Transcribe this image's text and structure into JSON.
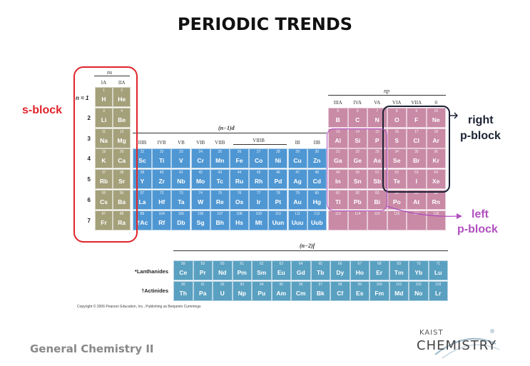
{
  "title": "PERIODIC TRENDS",
  "notes": {
    "s_block": "s-block",
    "right_p_block_1": "right",
    "right_p_block_2": "p-block",
    "left_p_block_1": "left",
    "left_p_block_2": "p-block"
  },
  "block_labels": {
    "ns": "ns",
    "np": "np",
    "nd": "(n−1)d",
    "nf": "(n−2)f",
    "n_eq": "n = 1"
  },
  "group_labels_s": [
    "IA",
    "IIA"
  ],
  "group_labels_p": [
    "IIIA",
    "IVA",
    "VA",
    "VIA",
    "VIIA",
    "0"
  ],
  "group_labels_d": [
    "IIIB",
    "IVB",
    "VB",
    "VIB",
    "VIIB",
    "VIIIB",
    "IB",
    "IIB"
  ],
  "periods": [
    "1",
    "2",
    "3",
    "4",
    "5",
    "6",
    "7"
  ],
  "row_labels": {
    "lanthanides": "*Lanthanides",
    "actinides": "†Actinides"
  },
  "elements": [
    {
      "n": "1",
      "s": "H",
      "p": 1,
      "c": 1,
      "b": "s"
    },
    {
      "n": "2",
      "s": "He",
      "p": 1,
      "c": 2,
      "b": "s"
    },
    {
      "n": "3",
      "s": "Li",
      "p": 2,
      "c": 1,
      "b": "s"
    },
    {
      "n": "4",
      "s": "Be",
      "p": 2,
      "c": 2,
      "b": "s"
    },
    {
      "n": "5",
      "s": "B",
      "p": 2,
      "c": 13,
      "b": "p"
    },
    {
      "n": "6",
      "s": "C",
      "p": 2,
      "c": 14,
      "b": "p"
    },
    {
      "n": "7",
      "s": "N",
      "p": 2,
      "c": 15,
      "b": "p"
    },
    {
      "n": "8",
      "s": "O",
      "p": 2,
      "c": 16,
      "b": "p"
    },
    {
      "n": "9",
      "s": "F",
      "p": 2,
      "c": 17,
      "b": "p"
    },
    {
      "n": "10",
      "s": "Ne",
      "p": 2,
      "c": 18,
      "b": "p"
    },
    {
      "n": "11",
      "s": "Na",
      "p": 3,
      "c": 1,
      "b": "s"
    },
    {
      "n": "12",
      "s": "Mg",
      "p": 3,
      "c": 2,
      "b": "s"
    },
    {
      "n": "13",
      "s": "Al",
      "p": 3,
      "c": 13,
      "b": "p"
    },
    {
      "n": "14",
      "s": "Si",
      "p": 3,
      "c": 14,
      "b": "p"
    },
    {
      "n": "15",
      "s": "P",
      "p": 3,
      "c": 15,
      "b": "p"
    },
    {
      "n": "16",
      "s": "S",
      "p": 3,
      "c": 16,
      "b": "p"
    },
    {
      "n": "17",
      "s": "Cl",
      "p": 3,
      "c": 17,
      "b": "p"
    },
    {
      "n": "18",
      "s": "Ar",
      "p": 3,
      "c": 18,
      "b": "p"
    },
    {
      "n": "19",
      "s": "K",
      "p": 4,
      "c": 1,
      "b": "s"
    },
    {
      "n": "20",
      "s": "Ca",
      "p": 4,
      "c": 2,
      "b": "s"
    },
    {
      "n": "21",
      "s": "Sc",
      "p": 4,
      "c": 3,
      "b": "d"
    },
    {
      "n": "22",
      "s": "Ti",
      "p": 4,
      "c": 4,
      "b": "d"
    },
    {
      "n": "23",
      "s": "V",
      "p": 4,
      "c": 5,
      "b": "d"
    },
    {
      "n": "24",
      "s": "Cr",
      "p": 4,
      "c": 6,
      "b": "d"
    },
    {
      "n": "25",
      "s": "Mn",
      "p": 4,
      "c": 7,
      "b": "d"
    },
    {
      "n": "26",
      "s": "Fe",
      "p": 4,
      "c": 8,
      "b": "d"
    },
    {
      "n": "27",
      "s": "Co",
      "p": 4,
      "c": 9,
      "b": "d"
    },
    {
      "n": "28",
      "s": "Ni",
      "p": 4,
      "c": 10,
      "b": "d"
    },
    {
      "n": "29",
      "s": "Cu",
      "p": 4,
      "c": 11,
      "b": "d"
    },
    {
      "n": "30",
      "s": "Zn",
      "p": 4,
      "c": 12,
      "b": "d"
    },
    {
      "n": "31",
      "s": "Ga",
      "p": 4,
      "c": 13,
      "b": "p"
    },
    {
      "n": "32",
      "s": "Ge",
      "p": 4,
      "c": 14,
      "b": "p"
    },
    {
      "n": "33",
      "s": "As",
      "p": 4,
      "c": 15,
      "b": "p"
    },
    {
      "n": "34",
      "s": "Se",
      "p": 4,
      "c": 16,
      "b": "p"
    },
    {
      "n": "35",
      "s": "Br",
      "p": 4,
      "c": 17,
      "b": "p"
    },
    {
      "n": "36",
      "s": "Kr",
      "p": 4,
      "c": 18,
      "b": "p"
    },
    {
      "n": "37",
      "s": "Rb",
      "p": 5,
      "c": 1,
      "b": "s"
    },
    {
      "n": "38",
      "s": "Sr",
      "p": 5,
      "c": 2,
      "b": "s"
    },
    {
      "n": "39",
      "s": "Y",
      "p": 5,
      "c": 3,
      "b": "d"
    },
    {
      "n": "40",
      "s": "Zr",
      "p": 5,
      "c": 4,
      "b": "d"
    },
    {
      "n": "41",
      "s": "Nb",
      "p": 5,
      "c": 5,
      "b": "d"
    },
    {
      "n": "42",
      "s": "Mo",
      "p": 5,
      "c": 6,
      "b": "d"
    },
    {
      "n": "43",
      "s": "Tc",
      "p": 5,
      "c": 7,
      "b": "d"
    },
    {
      "n": "44",
      "s": "Ru",
      "p": 5,
      "c": 8,
      "b": "d"
    },
    {
      "n": "45",
      "s": "Rh",
      "p": 5,
      "c": 9,
      "b": "d"
    },
    {
      "n": "46",
      "s": "Pd",
      "p": 5,
      "c": 10,
      "b": "d"
    },
    {
      "n": "47",
      "s": "Ag",
      "p": 5,
      "c": 11,
      "b": "d"
    },
    {
      "n": "48",
      "s": "Cd",
      "p": 5,
      "c": 12,
      "b": "d"
    },
    {
      "n": "49",
      "s": "In",
      "p": 5,
      "c": 13,
      "b": "p"
    },
    {
      "n": "50",
      "s": "Sn",
      "p": 5,
      "c": 14,
      "b": "p"
    },
    {
      "n": "51",
      "s": "Sb",
      "p": 5,
      "c": 15,
      "b": "p"
    },
    {
      "n": "52",
      "s": "Te",
      "p": 5,
      "c": 16,
      "b": "p"
    },
    {
      "n": "53",
      "s": "I",
      "p": 5,
      "c": 17,
      "b": "p"
    },
    {
      "n": "54",
      "s": "Xe",
      "p": 5,
      "c": 18,
      "b": "p"
    },
    {
      "n": "55",
      "s": "Cs",
      "p": 6,
      "c": 1,
      "b": "s"
    },
    {
      "n": "56",
      "s": "Ba",
      "p": 6,
      "c": 2,
      "b": "s"
    },
    {
      "n": "57",
      "s": "La",
      "p": 6,
      "c": 3,
      "b": "d"
    },
    {
      "n": "72",
      "s": "Hf",
      "p": 6,
      "c": 4,
      "b": "d"
    },
    {
      "n": "73",
      "s": "Ta",
      "p": 6,
      "c": 5,
      "b": "d"
    },
    {
      "n": "74",
      "s": "W",
      "p": 6,
      "c": 6,
      "b": "d"
    },
    {
      "n": "75",
      "s": "Re",
      "p": 6,
      "c": 7,
      "b": "d"
    },
    {
      "n": "76",
      "s": "Os",
      "p": 6,
      "c": 8,
      "b": "d"
    },
    {
      "n": "77",
      "s": "Ir",
      "p": 6,
      "c": 9,
      "b": "d"
    },
    {
      "n": "78",
      "s": "Pt",
      "p": 6,
      "c": 10,
      "b": "d"
    },
    {
      "n": "79",
      "s": "Au",
      "p": 6,
      "c": 11,
      "b": "d"
    },
    {
      "n": "80",
      "s": "Hg",
      "p": 6,
      "c": 12,
      "b": "d"
    },
    {
      "n": "81",
      "s": "Tl",
      "p": 6,
      "c": 13,
      "b": "p"
    },
    {
      "n": "82",
      "s": "Pb",
      "p": 6,
      "c": 14,
      "b": "p"
    },
    {
      "n": "83",
      "s": "Bi",
      "p": 6,
      "c": 15,
      "b": "p"
    },
    {
      "n": "84",
      "s": "Po",
      "p": 6,
      "c": 16,
      "b": "p"
    },
    {
      "n": "85",
      "s": "At",
      "p": 6,
      "c": 17,
      "b": "p"
    },
    {
      "n": "86",
      "s": "Rn",
      "p": 6,
      "c": 18,
      "b": "p"
    },
    {
      "n": "87",
      "s": "Fr",
      "p": 7,
      "c": 1,
      "b": "s"
    },
    {
      "n": "88",
      "s": "Ra",
      "p": 7,
      "c": 2,
      "b": "s"
    },
    {
      "n": "89",
      "s": "†Ac",
      "p": 7,
      "c": 3,
      "b": "d"
    },
    {
      "n": "104",
      "s": "Rf",
      "p": 7,
      "c": 4,
      "b": "d"
    },
    {
      "n": "105",
      "s": "Db",
      "p": 7,
      "c": 5,
      "b": "d"
    },
    {
      "n": "106",
      "s": "Sg",
      "p": 7,
      "c": 6,
      "b": "d"
    },
    {
      "n": "107",
      "s": "Bh",
      "p": 7,
      "c": 7,
      "b": "d"
    },
    {
      "n": "108",
      "s": "Hs",
      "p": 7,
      "c": 8,
      "b": "d"
    },
    {
      "n": "109",
      "s": "Mt",
      "p": 7,
      "c": 9,
      "b": "d"
    },
    {
      "n": "110",
      "s": "Uun",
      "p": 7,
      "c": 10,
      "b": "d"
    },
    {
      "n": "111",
      "s": "Uuu",
      "p": 7,
      "c": 11,
      "b": "d"
    },
    {
      "n": "112",
      "s": "Uub",
      "p": 7,
      "c": 12,
      "b": "d"
    },
    {
      "n": "113",
      "s": "",
      "p": 7,
      "c": 13,
      "b": "p"
    },
    {
      "n": "114",
      "s": "",
      "p": 7,
      "c": 14,
      "b": "p"
    },
    {
      "n": "115",
      "s": "",
      "p": 7,
      "c": 15,
      "b": "p"
    },
    {
      "n": "116",
      "s": "",
      "p": 7,
      "c": 16,
      "b": "p"
    },
    {
      "n": "117",
      "s": "",
      "p": 7,
      "c": 17,
      "b": "p"
    },
    {
      "n": "118",
      "s": "",
      "p": 7,
      "c": 18,
      "b": "p"
    }
  ],
  "lanthanides": [
    {
      "n": "58",
      "s": "Ce"
    },
    {
      "n": "59",
      "s": "Pr"
    },
    {
      "n": "60",
      "s": "Nd"
    },
    {
      "n": "61",
      "s": "Pm"
    },
    {
      "n": "62",
      "s": "Sm"
    },
    {
      "n": "63",
      "s": "Eu"
    },
    {
      "n": "64",
      "s": "Gd"
    },
    {
      "n": "65",
      "s": "Tb"
    },
    {
      "n": "66",
      "s": "Dy"
    },
    {
      "n": "67",
      "s": "Ho"
    },
    {
      "n": "68",
      "s": "Er"
    },
    {
      "n": "69",
      "s": "Tm"
    },
    {
      "n": "70",
      "s": "Yb"
    },
    {
      "n": "71",
      "s": "Lu"
    }
  ],
  "actinides": [
    {
      "n": "90",
      "s": "Th"
    },
    {
      "n": "91",
      "s": "Pa"
    },
    {
      "n": "92",
      "s": "U"
    },
    {
      "n": "93",
      "s": "Np"
    },
    {
      "n": "94",
      "s": "Pu"
    },
    {
      "n": "95",
      "s": "Am"
    },
    {
      "n": "96",
      "s": "Cm"
    },
    {
      "n": "97",
      "s": "Bk"
    },
    {
      "n": "98",
      "s": "Cf"
    },
    {
      "n": "99",
      "s": "Es"
    },
    {
      "n": "100",
      "s": "Fm"
    },
    {
      "n": "101",
      "s": "Md"
    },
    {
      "n": "102",
      "s": "No"
    },
    {
      "n": "103",
      "s": "Lr"
    }
  ],
  "copyright": "Copyright © 2006 Pearson Education, Inc., Publishing as Benjamin Cummings",
  "footer": "General Chemistry II",
  "logo": {
    "line1": "KAIST",
    "line2": "CHEMISTRY"
  },
  "colors": {
    "s_block": "#a4a07a",
    "d_block": "#4f97d3",
    "p_block": "#c98aa6",
    "f_block": "#5aa0c1",
    "s_outline": "#e0242a",
    "right_p_outline": "#1b2233",
    "left_p_outline": "#b04fbf"
  }
}
